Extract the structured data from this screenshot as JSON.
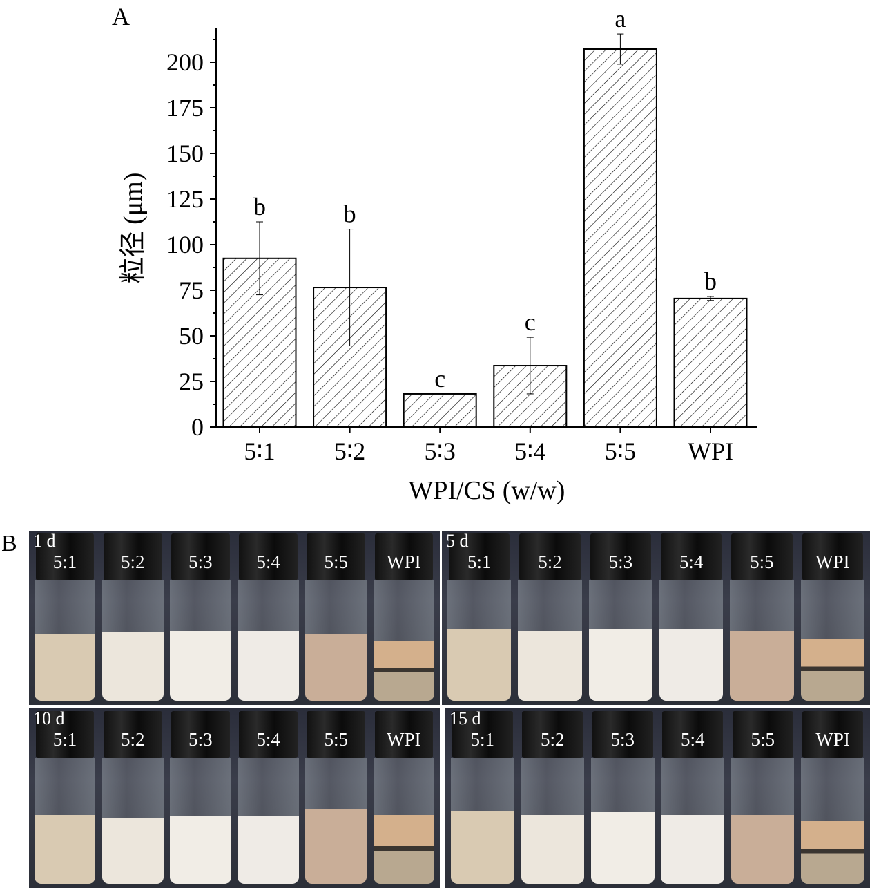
{
  "chart_data": {
    "type": "bar",
    "panel_label": "A",
    "categories": [
      "5:1",
      "5:2",
      "5:3",
      "5:4",
      "5:5",
      "WPI"
    ],
    "values": [
      92.5,
      76.5,
      18.2,
      33.7,
      207.2,
      70.5
    ],
    "errors": [
      20,
      32,
      0,
      15.5,
      8.3,
      1.1
    ],
    "significance": [
      "b",
      "b",
      "c",
      "c",
      "a",
      "b"
    ],
    "ylabel": "粒径 (μm)",
    "xlabel": "WPI/CS (w/w)",
    "ylim": [
      0,
      220
    ],
    "yticks": [
      0,
      25,
      50,
      75,
      100,
      125,
      150,
      175,
      200
    ],
    "grid": false,
    "bar_fill": "diagonal-hatch",
    "bar_color": "#000000"
  },
  "photos": {
    "panel_label": "B",
    "panels": [
      {
        "label": "1 d",
        "vials": [
          "5:1",
          "5:2",
          "5:3",
          "5:4",
          "5:5",
          "WPI"
        ]
      },
      {
        "label": "5 d",
        "vials": [
          "5:1",
          "5:2",
          "5:3",
          "5:4",
          "5:5",
          "WPI"
        ]
      },
      {
        "label": "10 d",
        "vials": [
          "5:1",
          "5:2",
          "5:3",
          "5:4",
          "5:5",
          "WPI"
        ]
      },
      {
        "label": "15 d",
        "vials": [
          "5:1",
          "5:2",
          "5:3",
          "5:4",
          "5:5",
          "WPI"
        ]
      }
    ],
    "liquid_colors": [
      "#d9cab2",
      "#ece6dc",
      "#f1ede6",
      "#efebe6",
      "#c9ae98",
      "#d4b08c"
    ]
  }
}
